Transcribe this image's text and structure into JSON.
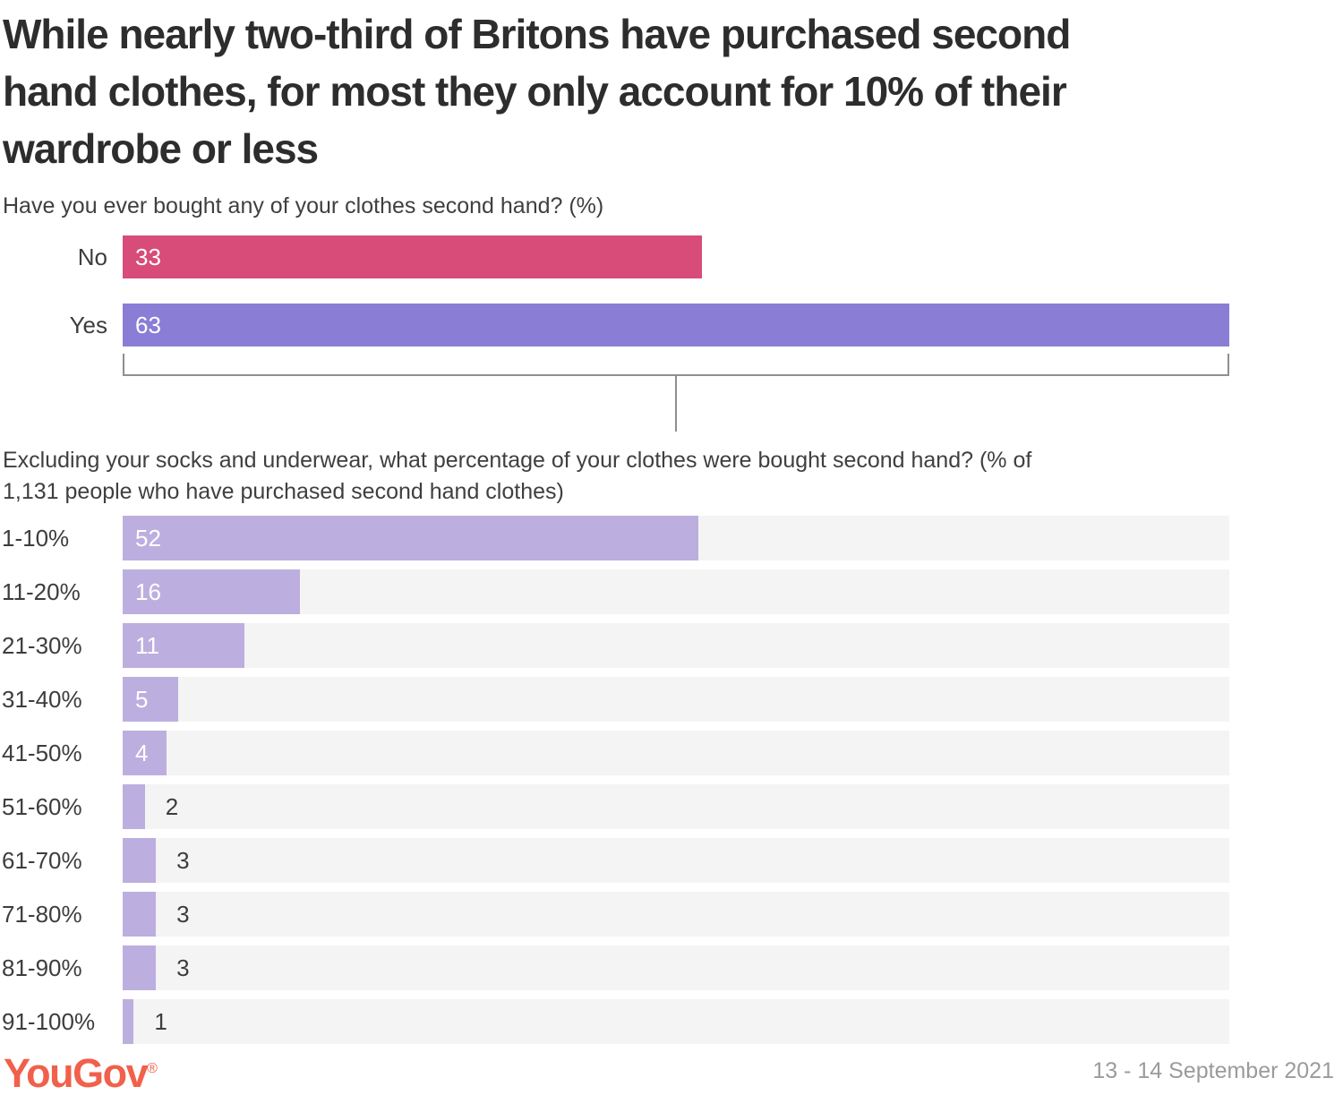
{
  "title_lines": [
    "While nearly two-third of Britons have purchased second",
    "hand clothes, for most they only account for 10% of their",
    "wardrobe or less"
  ],
  "survey1": {
    "question": "Have you ever bought any of your clothes second hand? (%)",
    "max": 63,
    "rows": [
      {
        "label": "No",
        "value": 33,
        "color": "#D74C79",
        "label_inside": true
      },
      {
        "label": "Yes",
        "value": 63,
        "color": "#8A7DD6",
        "label_inside": true
      }
    ]
  },
  "survey2": {
    "question_lines": [
      "Excluding your socks and underwear, what percentage of your clothes were bought second hand? (% of",
      "1,131 people who have purchased second hand clothes)"
    ],
    "max": 100,
    "bar_color": "#BCAFDF",
    "track_color": "#F4F4F4",
    "rows": [
      {
        "label": "1-10%",
        "value": 52,
        "label_inside": true
      },
      {
        "label": "11-20%",
        "value": 16,
        "label_inside": true
      },
      {
        "label": "21-30%",
        "value": 11,
        "label_inside": true
      },
      {
        "label": "31-40%",
        "value": 5,
        "label_inside": true
      },
      {
        "label": "41-50%",
        "value": 4,
        "label_inside": true
      },
      {
        "label": "51-60%",
        "value": 2,
        "label_inside": false
      },
      {
        "label": "61-70%",
        "value": 3,
        "label_inside": false
      },
      {
        "label": "71-80%",
        "value": 3,
        "label_inside": false
      },
      {
        "label": "81-90%",
        "value": 3,
        "label_inside": false
      },
      {
        "label": "91-100%",
        "value": 1,
        "label_inside": false
      }
    ]
  },
  "footer": {
    "brand": "YouGov",
    "registered": "®",
    "brand_color": "#F1604B",
    "date": "13 - 14 September 2021"
  },
  "colors": {
    "pink": "#D74C79",
    "purple": "#8A7DD6",
    "light_purple": "#BCAFDF",
    "track_gray": "#F4F4F4",
    "bracket_gray": "#8F8F8F",
    "title_text": "#2D2D2D",
    "body_text": "#3F3F3F",
    "muted_text": "#9B9B9B"
  },
  "chart_data": [
    {
      "type": "bar",
      "orientation": "horizontal",
      "title": "Have you ever bought any of your clothes second hand? (%)",
      "categories": [
        "No",
        "Yes"
      ],
      "values": [
        33,
        63
      ],
      "colors": [
        "#D74C79",
        "#8A7DD6"
      ],
      "xlim": [
        0,
        63
      ],
      "grid": false,
      "legend": "none",
      "value_labels": "inside-left, white"
    },
    {
      "type": "bar",
      "orientation": "horizontal",
      "title": "Excluding your socks and underwear, what percentage of your clothes were bought second hand? (% of 1,131 people who have purchased second hand clothes)",
      "categories": [
        "1-10%",
        "11-20%",
        "21-30%",
        "31-40%",
        "41-50%",
        "51-60%",
        "61-70%",
        "71-80%",
        "81-90%",
        "91-100%"
      ],
      "values": [
        52,
        16,
        11,
        5,
        4,
        2,
        3,
        3,
        3,
        1
      ],
      "bar_color": "#BCAFDF",
      "track_color": "#F4F4F4",
      "xlim": [
        0,
        100
      ],
      "grid": false,
      "legend": "none",
      "value_labels": "inside-left white for values >= 4, outside dark otherwise"
    }
  ]
}
